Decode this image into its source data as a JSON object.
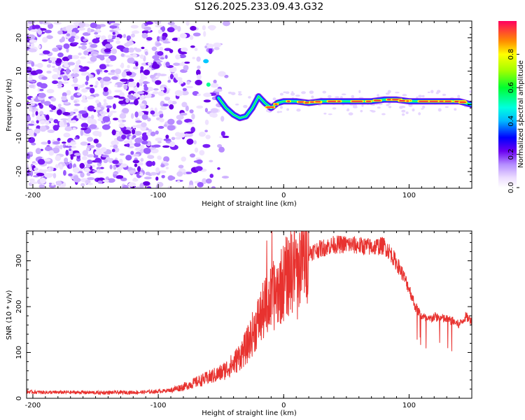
{
  "title": "S126.2025.233.09.43.G32",
  "chart_data": [
    {
      "type": "heatmap",
      "xlabel": "Height of straight line (km)",
      "ylabel": "Frequency (Hz)",
      "xlim": [
        -205,
        150
      ],
      "ylim": [
        -25,
        25
      ],
      "xticks": [
        -200,
        -100,
        0,
        100
      ],
      "xtick_labels": [
        "-200",
        "-100",
        "0",
        "100"
      ],
      "yticks": [
        -20,
        -10,
        0,
        10,
        20
      ],
      "ytick_labels": [
        "-20",
        "-10",
        "0",
        "10",
        "20"
      ],
      "colorbar": {
        "label": "Normalized spectral amplitude",
        "range": [
          0,
          1
        ],
        "ticks": [
          0,
          0.2,
          0.4,
          0.6,
          0.8
        ],
        "tick_labels": [
          "0.0",
          "0.2",
          "0.4",
          "0.6",
          "0.8"
        ]
      },
      "ridge": {
        "x": [
          -52,
          -46,
          -40,
          -35,
          -30,
          -25,
          -20,
          -15,
          -10,
          -5,
          0,
          10,
          20,
          30,
          40,
          50,
          60,
          70,
          80,
          90,
          100,
          110,
          120,
          130,
          140,
          150
        ],
        "y": [
          2,
          -1,
          -3,
          -4,
          -3.5,
          -1,
          2.5,
          0.5,
          -1,
          0.5,
          1,
          1,
          0.5,
          1,
          1,
          1,
          1,
          1,
          1.5,
          1.5,
          1,
          1,
          1,
          1,
          1,
          0
        ]
      }
    },
    {
      "type": "line",
      "xlabel": "Height of straight line (km)",
      "ylabel": "SNR (10 * v/v)",
      "xlim": [
        -205,
        150
      ],
      "ylim": [
        0,
        365
      ],
      "xticks": [
        -200,
        -100,
        0,
        100
      ],
      "xtick_labels": [
        "-200",
        "-100",
        "0",
        "100"
      ],
      "yticks": [
        0,
        100,
        200,
        300
      ],
      "ytick_labels": [
        "0",
        "100",
        "200",
        "300"
      ],
      "color": "#e8322f",
      "x": [
        -205,
        -190,
        -175,
        -160,
        -145,
        -130,
        -115,
        -100,
        -90,
        -80,
        -70,
        -60,
        -50,
        -40,
        -30,
        -25,
        -20,
        -15,
        -10,
        -5,
        0,
        5,
        10,
        15,
        20,
        30,
        40,
        50,
        60,
        70,
        80,
        85,
        90,
        95,
        100,
        105,
        110,
        115,
        120,
        125,
        130,
        135,
        140,
        145,
        150
      ],
      "y": [
        14,
        13,
        13,
        13,
        12,
        13,
        13,
        15,
        18,
        25,
        35,
        45,
        55,
        75,
        110,
        140,
        170,
        195,
        215,
        235,
        255,
        275,
        290,
        305,
        318,
        327,
        335,
        336,
        333,
        330,
        333,
        318,
        295,
        270,
        240,
        200,
        180,
        170,
        178,
        175,
        172,
        168,
        160,
        178,
        170
      ]
    }
  ]
}
